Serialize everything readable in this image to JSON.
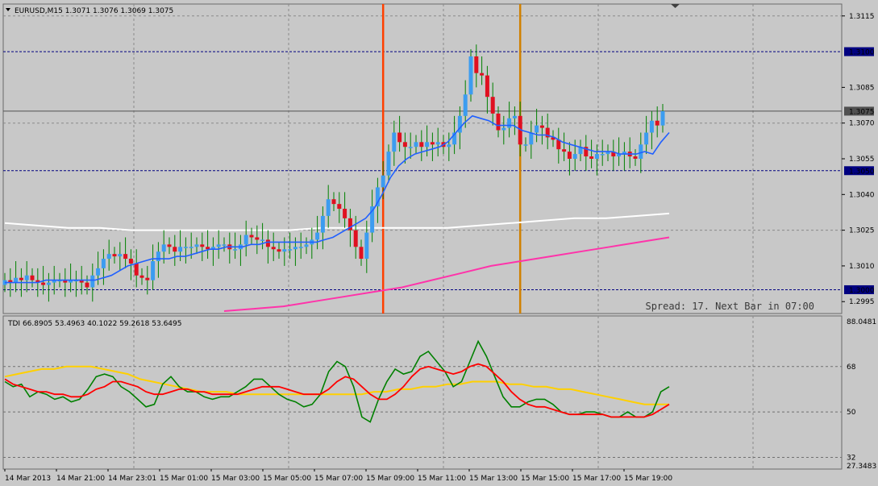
{
  "main_chart": {
    "header": "EURUSD,M15  1.3071 1.3076 1.3069 1.3075",
    "spread_text": "Spread: 17. Next Bar in 07:00",
    "price_ticks": [
      "1.3115",
      "1.3085",
      "1.3070",
      "1.3055",
      "1.3040",
      "1.3025",
      "1.3010",
      "1.2995"
    ],
    "price_tick_values": [
      1.3115,
      1.3085,
      1.307,
      1.3055,
      1.304,
      1.3025,
      1.301,
      1.2995
    ],
    "hlines": [
      {
        "label": "1.3100",
        "value": 1.31,
        "color": "#000080"
      },
      {
        "label": "1.3050",
        "value": 1.305,
        "color": "#000080"
      },
      {
        "label": "1.3000",
        "value": 1.3,
        "color": "#000080"
      }
    ],
    "current_price": {
      "label": "1.3075",
      "value": 1.3075
    },
    "vlines": [
      {
        "time_index": 69,
        "color": "#ff4000"
      },
      {
        "time_index": 94,
        "color": "#d08000"
      }
    ],
    "colors": {
      "bull": "#3c9cf0",
      "bear": "#e01020",
      "ma_fast": "#2060ff",
      "ma_white": "#ffffff",
      "ma_pink": "#ff33aa",
      "grid": "#8a8a8a"
    }
  },
  "indicator": {
    "header": "TDI 66.8905 53.4963 40.1022 59.2618 53.6495",
    "ticks": [
      "88.0481",
      "68",
      "50",
      "32",
      "27.3483"
    ],
    "tick_values": [
      88.0481,
      68,
      50,
      32,
      27.3483
    ],
    "levels": [
      68,
      50,
      32
    ],
    "colors": {
      "green": "#008000",
      "red": "#ff0000",
      "yellow": "#ffd000"
    }
  },
  "time_axis": {
    "labels": [
      "14 Mar 2013",
      "14 Mar 21:00",
      "14 Mar 23:01",
      "15 Mar 01:00",
      "15 Mar 03:00",
      "15 Mar 05:00",
      "15 Mar 07:00",
      "15 Mar 09:00",
      "15 Mar 11:00",
      "15 Mar 13:00",
      "15 Mar 15:00",
      "15 Mar 17:00",
      "15 Mar 19:00"
    ]
  },
  "chart_data": {
    "type": "candlestick",
    "symbol": "EURUSD",
    "timeframe": "M15",
    "ylim": [
      1.299,
      1.312
    ],
    "candles_close": [
      1.3004,
      1.3003,
      1.3005,
      1.3004,
      1.3006,
      1.3004,
      1.3003,
      1.3002,
      1.3003,
      1.3004,
      1.3004,
      1.3003,
      1.3004,
      1.3004,
      1.3003,
      1.3001,
      1.3006,
      1.3009,
      1.3013,
      1.3015,
      1.3014,
      1.3015,
      1.3013,
      1.3011,
      1.3006,
      1.3005,
      1.3004,
      1.3012,
      1.3016,
      1.3019,
      1.3018,
      1.3016,
      1.3018,
      1.3018,
      1.3018,
      1.3019,
      1.3018,
      1.3017,
      1.3018,
      1.3019,
      1.3019,
      1.3017,
      1.3017,
      1.3019,
      1.3023,
      1.3022,
      1.3021,
      1.3021,
      1.3018,
      1.3017,
      1.3016,
      1.3017,
      1.3017,
      1.3018,
      1.3018,
      1.3019,
      1.3021,
      1.3024,
      1.3031,
      1.3038,
      1.3036,
      1.3034,
      1.303,
      1.3025,
      1.3018,
      1.3013,
      1.3024,
      1.3035,
      1.3043,
      1.3048,
      1.3058,
      1.3066,
      1.3062,
      1.306,
      1.306,
      1.3062,
      1.306,
      1.3062,
      1.3061,
      1.3062,
      1.306,
      1.3061,
      1.3066,
      1.3073,
      1.3082,
      1.3098,
      1.3091,
      1.309,
      1.3081,
      1.3074,
      1.3067,
      1.3068,
      1.3072,
      1.3073,
      1.3061,
      1.3061,
      1.3066,
      1.3069,
      1.3068,
      1.3064,
      1.3063,
      1.3059,
      1.3058,
      1.3055,
      1.3057,
      1.306,
      1.3056,
      1.3055,
      1.3057,
      1.3057,
      1.3058,
      1.3056,
      1.3057,
      1.3058,
      1.3056,
      1.3055,
      1.3061,
      1.3066,
      1.3071,
      1.3069,
      1.3075
    ],
    "ma_fast": [
      1.3003,
      1.3003,
      1.3003,
      1.3003,
      1.3003,
      1.3004,
      1.3004,
      1.3004,
      1.3004,
      1.3004,
      1.3004,
      1.3004,
      1.3005,
      1.3006,
      1.3008,
      1.301,
      1.3011,
      1.3012,
      1.3013,
      1.3013,
      1.3013,
      1.3014,
      1.3014,
      1.3015,
      1.3016,
      1.3017,
      1.3017,
      1.3018,
      1.3018,
      1.3018,
      1.3019,
      1.3019,
      1.302,
      1.302,
      1.302,
      1.302,
      1.302,
      1.302,
      1.302,
      1.3021,
      1.3022,
      1.3024,
      1.3026,
      1.3028,
      1.303,
      1.3034,
      1.304,
      1.3047,
      1.3052,
      1.3055,
      1.3057,
      1.3058,
      1.3059,
      1.306,
      1.3062,
      1.3066,
      1.307,
      1.3073,
      1.3072,
      1.3071,
      1.3069,
      1.3069,
      1.3069,
      1.3067,
      1.3066,
      1.3065,
      1.3065,
      1.3064,
      1.3062,
      1.3061,
      1.306,
      1.3059,
      1.3058,
      1.3058,
      1.3058,
      1.3057,
      1.3057,
      1.3057,
      1.3058,
      1.3057,
      1.3062,
      1.3066
    ],
    "ma_fast_start_index": 0,
    "ma_white": [
      1.3028,
      1.3027,
      1.3026,
      1.3026,
      1.3025,
      1.3025,
      1.3025,
      1.3025,
      1.3025,
      1.3025,
      1.3026,
      1.3026,
      1.3026,
      1.3026,
      1.3026,
      1.3027,
      1.3028,
      1.3029,
      1.303,
      1.303,
      1.3031,
      1.3032
    ],
    "ma_pink": [
      1.2991,
      1.2992,
      1.2993,
      1.2995,
      1.2997,
      1.2999,
      1.3001,
      1.3004,
      1.3007,
      1.301,
      1.3012,
      1.3014,
      1.3016,
      1.3018,
      1.302,
      1.3022
    ],
    "tdi_green": [
      62,
      60,
      61,
      56,
      58,
      57,
      55,
      56,
      54,
      55,
      59,
      64,
      65,
      64,
      60,
      58,
      55,
      52,
      53,
      61,
      64,
      60,
      58,
      58,
      56,
      55,
      56,
      56,
      58,
      60,
      63,
      63,
      60,
      57,
      55,
      54,
      52,
      53,
      57,
      66,
      70,
      68,
      60,
      48,
      46,
      55,
      62,
      67,
      65,
      66,
      72,
      74,
      70,
      66,
      60,
      62,
      70,
      78,
      72,
      64,
      56,
      52,
      52,
      54,
      55,
      55,
      53,
      50,
      49,
      49,
      50,
      50,
      49,
      48,
      48,
      50,
      48,
      48,
      50,
      58,
      60
    ],
    "tdi_red": [
      63,
      61,
      60,
      59,
      58,
      58,
      57,
      57,
      56,
      56,
      57,
      59,
      60,
      62,
      62,
      61,
      60,
      58,
      57,
      57,
      58,
      59,
      59,
      58,
      58,
      57,
      57,
      57,
      57,
      58,
      59,
      60,
      60,
      60,
      59,
      58,
      57,
      57,
      57,
      59,
      62,
      64,
      63,
      60,
      57,
      55,
      55,
      57,
      60,
      64,
      67,
      68,
      67,
      66,
      65,
      66,
      68,
      69,
      68,
      65,
      62,
      58,
      55,
      53,
      52,
      52,
      51,
      50,
      49,
      49,
      49,
      49,
      49,
      48,
      48,
      48,
      48,
      48,
      49,
      51,
      53
    ],
    "tdi_yellow": [
      64,
      65,
      66,
      67,
      67,
      68,
      68,
      68,
      67,
      66,
      65,
      63,
      62,
      61,
      60,
      59,
      58,
      58,
      58,
      57,
      57,
      57,
      57,
      57,
      57,
      57,
      57,
      57,
      57,
      57,
      58,
      58,
      59,
      59,
      60,
      60,
      61,
      61,
      62,
      62,
      62,
      61,
      61,
      60,
      60,
      59,
      59,
      58,
      57,
      56,
      55,
      54,
      53,
      53,
      53
    ]
  }
}
